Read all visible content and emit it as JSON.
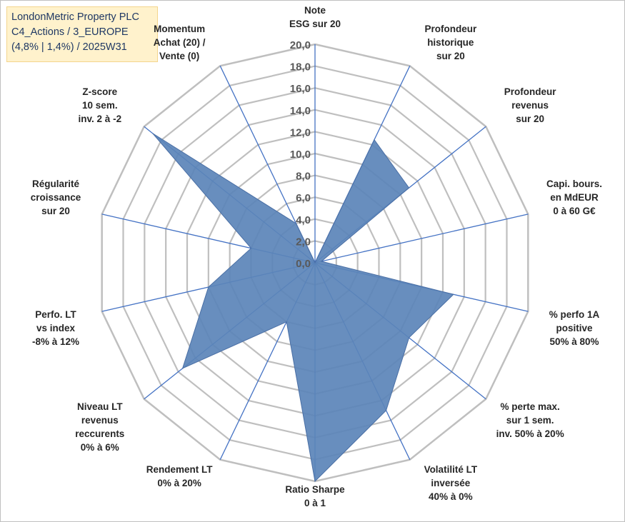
{
  "title": {
    "lines": [
      "LondonMetric Property PLC",
      "C4_Actions / 3_EUROPE",
      "(4,8% | 1,4%) / 2025W31"
    ]
  },
  "chart_data": {
    "type": "radar",
    "range": [
      0,
      20
    ],
    "tick_step": 2,
    "ticks": [
      "0,0",
      "2,0",
      "4,0",
      "6,0",
      "8,0",
      "10,0",
      "12,0",
      "14,0",
      "16,0",
      "18,0",
      "20,0"
    ],
    "grid": true,
    "fill_color": "#5b84b8",
    "grid_color": "#bfbfbf",
    "axis_color": "#4472c4",
    "axes": [
      {
        "label": [
          "Note",
          "ESG sur 20"
        ],
        "value": 0.0
      },
      {
        "label": [
          "Profondeur",
          "historique",
          "sur 20"
        ],
        "value": 12.5
      },
      {
        "label": [
          "Profondeur",
          "revenus",
          "sur 20"
        ],
        "value": 11.0
      },
      {
        "label": [
          "Capi. bours.",
          "en MdEUR",
          "0 à 60 G€"
        ],
        "value": 0.6
      },
      {
        "label": [
          "% perfo 1A",
          "positive",
          "50% à 80%"
        ],
        "value": 13.0
      },
      {
        "label": [
          "% perte max.",
          "sur 1 sem.",
          "inv. 50% à 20%"
        ],
        "value": 11.0
      },
      {
        "label": [
          "Volatilité LT",
          "inversée",
          "40% à 0%"
        ],
        "value": 15.0
      },
      {
        "label": [
          "Ratio Sharpe",
          "0 à 1"
        ],
        "value": 20.0
      },
      {
        "label": [
          "Rendement LT",
          "0% à 20%"
        ],
        "value": 6.0
      },
      {
        "label": [
          "Niveau LT",
          "revenus",
          "reccurents",
          "0% à 6%"
        ],
        "value": 15.5
      },
      {
        "label": [
          "Perfo. LT",
          "vs index",
          "-8% à 12%"
        ],
        "value": 10.0
      },
      {
        "label": [
          "Régularité",
          "croissance",
          "sur 20"
        ],
        "value": 6.0
      },
      {
        "label": [
          "Z-score",
          "10 sem.",
          "inv. 2 à -2"
        ],
        "value": 19.0
      },
      {
        "label": [
          "Momentum",
          "Achat (20) /",
          "Vente (0)"
        ],
        "value": 4.0
      }
    ]
  }
}
